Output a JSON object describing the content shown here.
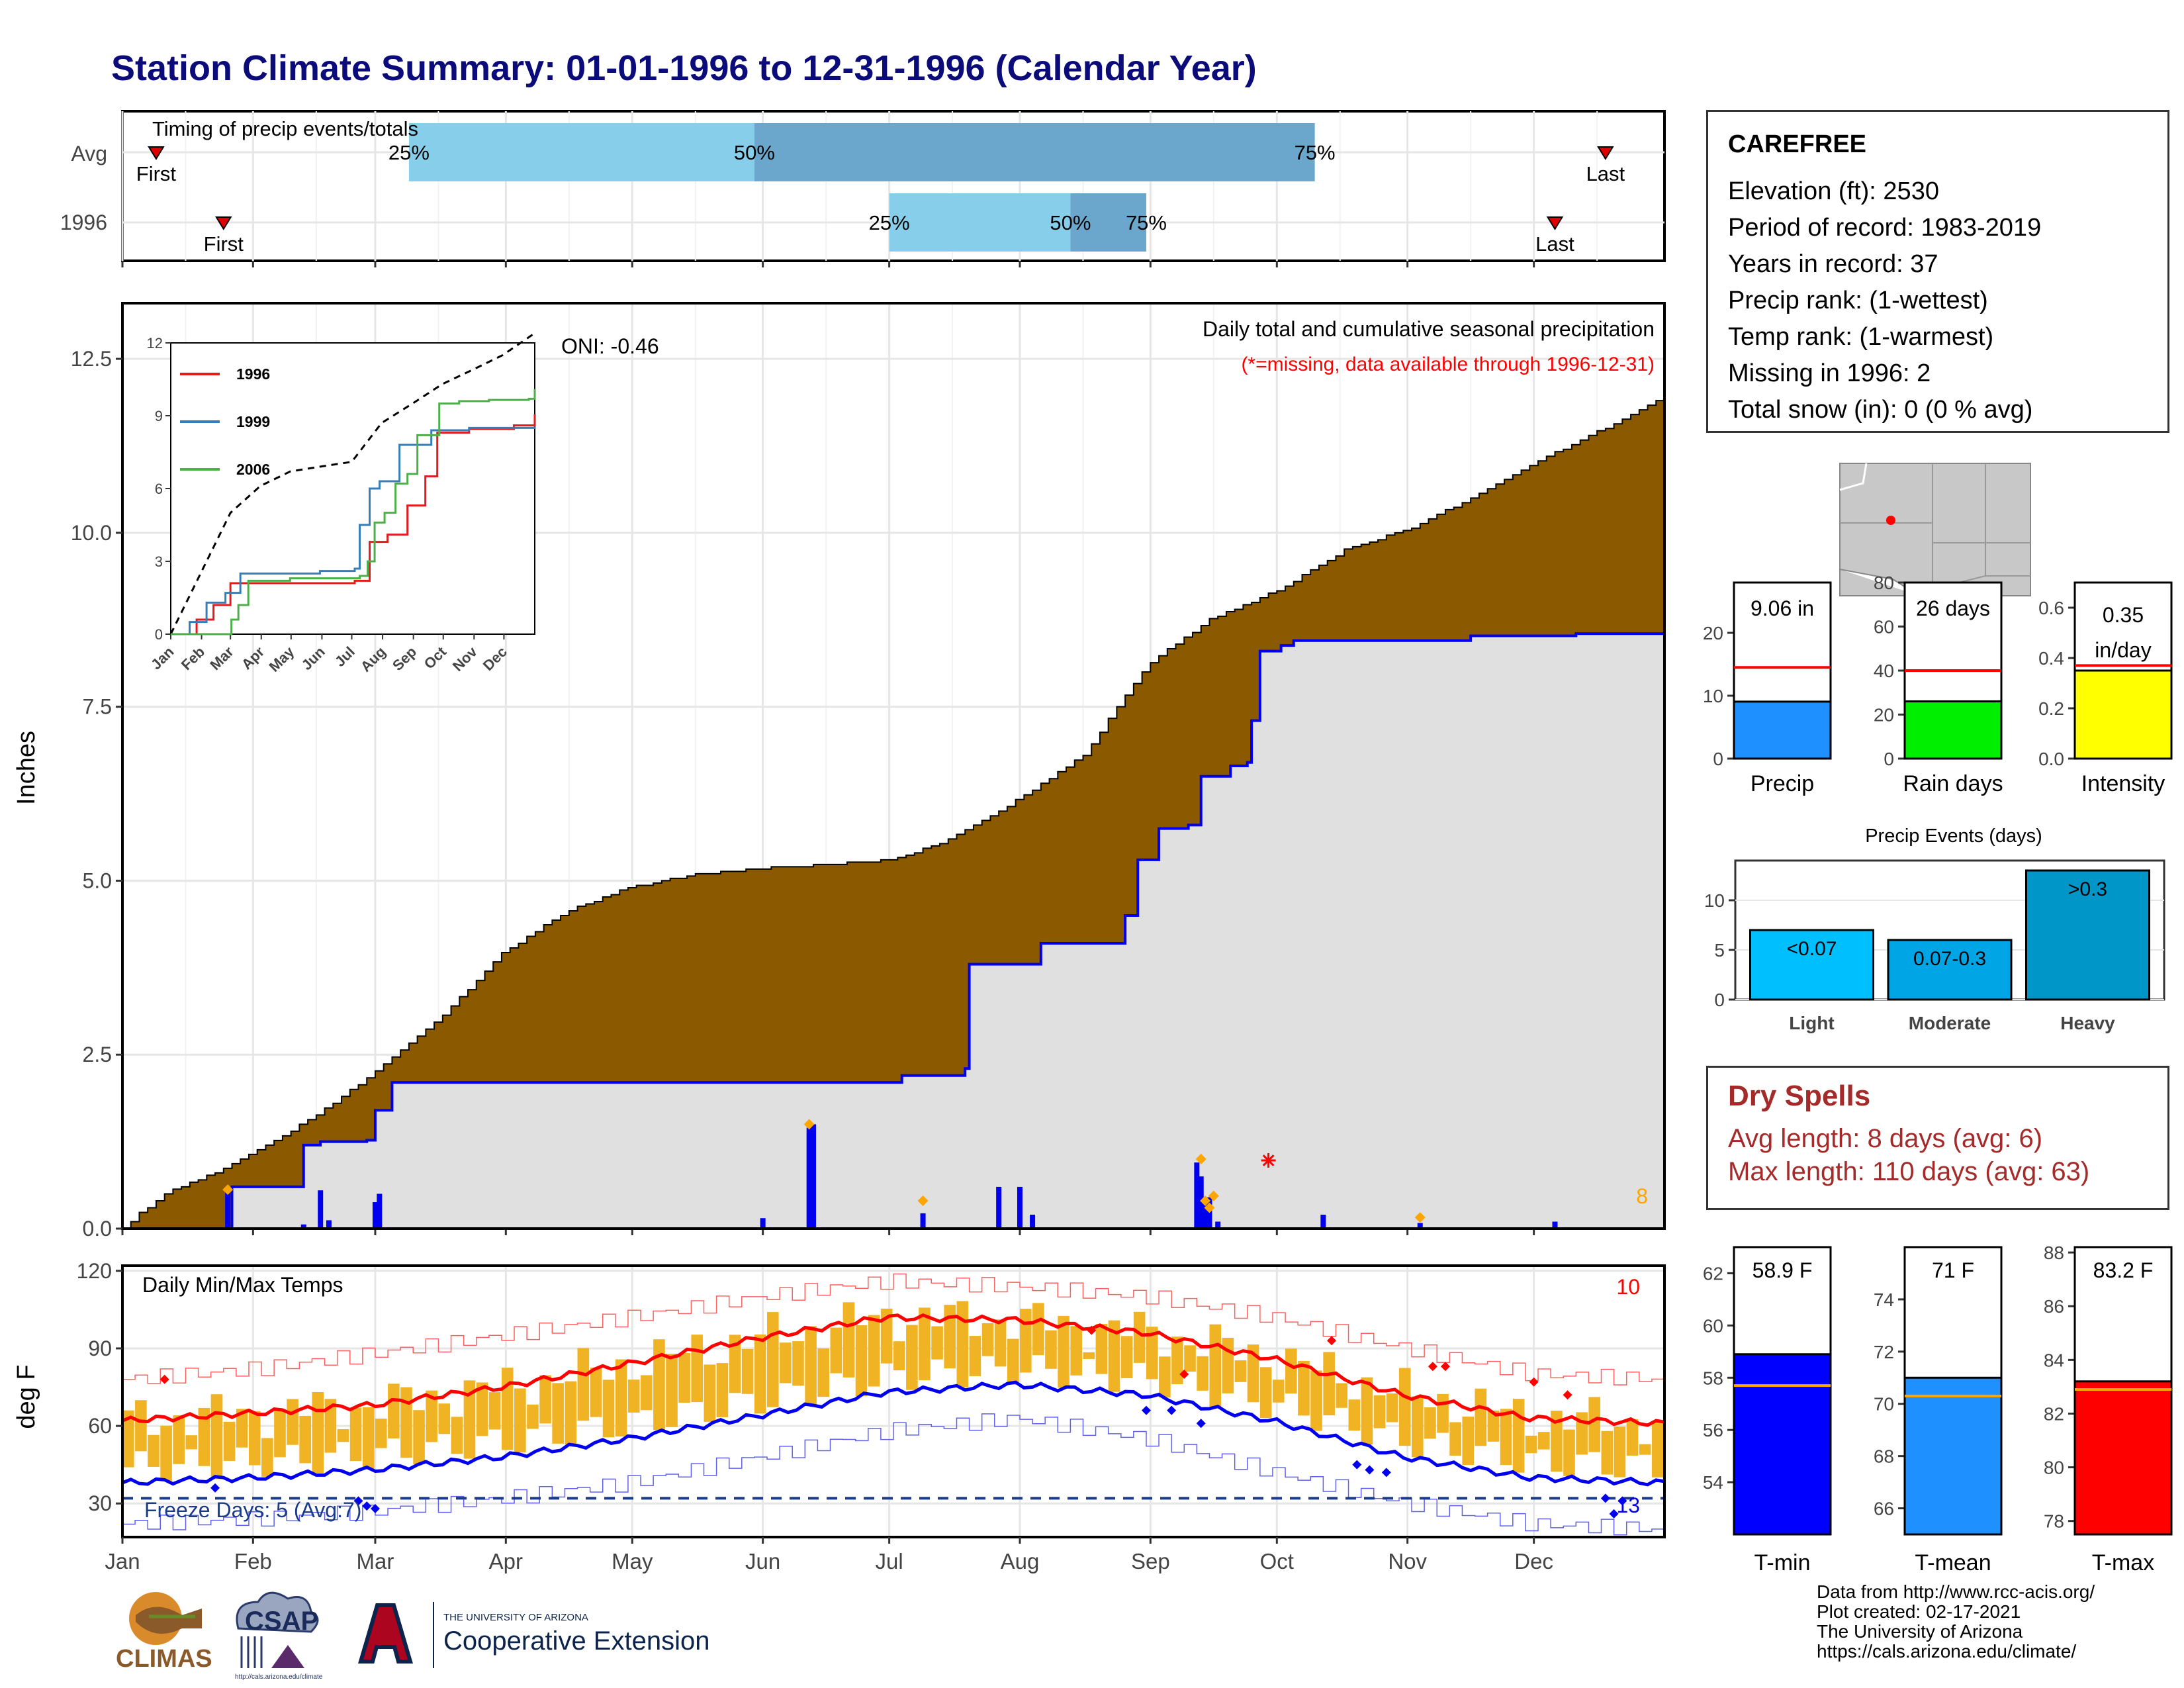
{
  "title": "Station Climate Summary: 01-01-1996 to 12-31-1996 (Calendar Year)",
  "timing_panel": {
    "label": "Timing of precip events/totals",
    "row_labels": [
      "Avg",
      "1996"
    ],
    "avg": {
      "first_day": 8,
      "p25_day": 68,
      "p50_day": 150,
      "p75_day": 283,
      "last_day": 352
    },
    "y1996": {
      "first_day": 24,
      "p25_day": 182,
      "p50_day": 225,
      "p75_day": 243,
      "last_day": 340
    },
    "first_label": "First",
    "last_label": "Last",
    "p25_label": "25%",
    "p50_label": "50%",
    "p75_label": "75%",
    "colors": {
      "q1": "#87ceeb",
      "q2": "#6ba6cc",
      "marker": "#e00000"
    }
  },
  "precip_panel": {
    "ylabel": "Inches",
    "oni_label": "ONI: -0.46",
    "caption": "Daily total and cumulative seasonal precipitation",
    "missing_note": "(*=missing, data available through 1996-12-31)",
    "count_label": "8",
    "ylim": [
      0,
      13.3
    ],
    "yticks": [
      "0.0",
      "2.5",
      "5.0",
      "7.5",
      "10.0",
      "12.5"
    ],
    "avg_cumulative": [
      [
        0,
        0
      ],
      [
        4,
        0.22
      ],
      [
        10,
        0.5
      ],
      [
        20,
        0.75
      ],
      [
        31,
        1.08
      ],
      [
        45,
        1.6
      ],
      [
        59,
        2.2
      ],
      [
        75,
        3.0
      ],
      [
        90,
        3.95
      ],
      [
        105,
        4.55
      ],
      [
        120,
        4.9
      ],
      [
        135,
        5.08
      ],
      [
        150,
        5.17
      ],
      [
        165,
        5.22
      ],
      [
        182,
        5.3
      ],
      [
        195,
        5.55
      ],
      [
        212,
        6.15
      ],
      [
        228,
        6.8
      ],
      [
        243,
        8.1
      ],
      [
        258,
        8.75
      ],
      [
        275,
        9.2
      ],
      [
        290,
        9.75
      ],
      [
        305,
        10.05
      ],
      [
        320,
        10.5
      ],
      [
        335,
        11.0
      ],
      [
        350,
        11.45
      ],
      [
        360,
        11.75
      ],
      [
        366,
        11.95
      ]
    ],
    "obs_cumulative": [
      [
        0,
        0
      ],
      [
        25,
        0
      ],
      [
        26,
        0.6
      ],
      [
        42,
        0.6
      ],
      [
        43,
        1.2
      ],
      [
        47,
        1.25
      ],
      [
        58,
        1.27
      ],
      [
        60,
        1.7
      ],
      [
        64,
        2.1
      ],
      [
        152,
        2.1
      ],
      [
        185,
        2.2
      ],
      [
        200,
        2.3
      ],
      [
        201,
        3.8
      ],
      [
        218,
        4.1
      ],
      [
        238,
        4.5
      ],
      [
        241,
        5.3
      ],
      [
        246,
        5.75
      ],
      [
        253,
        5.8
      ],
      [
        256,
        6.5
      ],
      [
        263,
        6.65
      ],
      [
        267,
        6.7
      ],
      [
        268,
        7.3
      ],
      [
        270,
        8.3
      ],
      [
        275,
        8.38
      ],
      [
        278,
        8.45
      ],
      [
        300,
        8.45
      ],
      [
        320,
        8.52
      ],
      [
        345,
        8.55
      ],
      [
        366,
        9.06
      ]
    ],
    "daily_bars": [
      [
        25,
        0.58
      ],
      [
        43,
        0.06
      ],
      [
        47,
        0.55
      ],
      [
        49,
        0.12
      ],
      [
        60,
        0.38
      ],
      [
        61,
        0.5
      ],
      [
        152,
        0.15
      ],
      [
        163,
        1.45
      ],
      [
        164,
        1.5
      ],
      [
        190,
        0.22
      ],
      [
        208,
        0.6
      ],
      [
        213,
        0.6
      ],
      [
        216,
        0.2
      ],
      [
        255,
        0.95
      ],
      [
        256,
        0.75
      ],
      [
        257,
        0.4
      ],
      [
        258,
        0.45
      ],
      [
        260,
        0.1
      ],
      [
        285,
        0.2
      ],
      [
        308,
        0.08
      ],
      [
        340,
        0.1
      ]
    ],
    "max_markers": [
      [
        25,
        0.56
      ],
      [
        163,
        1.5
      ],
      [
        190,
        0.4
      ],
      [
        256,
        1.0
      ],
      [
        257,
        0.4
      ],
      [
        258,
        0.3
      ],
      [
        259,
        0.47
      ],
      [
        308,
        0.16
      ]
    ],
    "missing_markers": [
      [
        272,
        0.98
      ]
    ],
    "colors": {
      "area": "#8b5a00",
      "obs_fill": "#e0e0e0",
      "obs_line": "#0000ee",
      "bars": "#0000ee",
      "max": "#ffa500",
      "missing": "#ff0000"
    }
  },
  "inset": {
    "ylim": [
      0,
      12
    ],
    "yticks": [
      "0",
      "3",
      "6",
      "9",
      "12"
    ],
    "months": [
      "Jan",
      "Feb",
      "Mar",
      "Apr",
      "May",
      "Jun",
      "Jul",
      "Aug",
      "Sep",
      "Oct",
      "Nov",
      "Dec"
    ],
    "avg": [
      [
        0,
        0
      ],
      [
        30,
        2.5
      ],
      [
        60,
        5
      ],
      [
        90,
        6.1
      ],
      [
        120,
        6.7
      ],
      [
        150,
        6.9
      ],
      [
        182,
        7.1
      ],
      [
        212,
        8.7
      ],
      [
        243,
        9.5
      ],
      [
        273,
        10.3
      ],
      [
        304,
        10.9
      ],
      [
        334,
        11.5
      ],
      [
        366,
        12.4
      ]
    ],
    "series": [
      {
        "name": "1996",
        "color": "#e41a1c",
        "points": [
          [
            0,
            0
          ],
          [
            25,
            0
          ],
          [
            26,
            0.6
          ],
          [
            42,
            0.6
          ],
          [
            43,
            1.2
          ],
          [
            60,
            2.1
          ],
          [
            152,
            2.1
          ],
          [
            185,
            2.2
          ],
          [
            200,
            3.8
          ],
          [
            218,
            4.1
          ],
          [
            238,
            5.3
          ],
          [
            256,
            6.5
          ],
          [
            268,
            8.3
          ],
          [
            300,
            8.45
          ],
          [
            345,
            8.6
          ],
          [
            366,
            9.06
          ]
        ]
      },
      {
        "name": "1999",
        "color": "#377eb8",
        "points": [
          [
            0,
            0
          ],
          [
            18,
            0
          ],
          [
            19,
            0.5
          ],
          [
            35,
            0.5
          ],
          [
            36,
            1.3
          ],
          [
            55,
            1.7
          ],
          [
            70,
            2.5
          ],
          [
            150,
            2.6
          ],
          [
            185,
            2.7
          ],
          [
            190,
            4.5
          ],
          [
            200,
            6.0
          ],
          [
            210,
            6.3
          ],
          [
            230,
            7.8
          ],
          [
            262,
            8.4
          ],
          [
            300,
            8.5
          ],
          [
            366,
            8.55
          ]
        ]
      },
      {
        "name": "2006",
        "color": "#4daf4a",
        "points": [
          [
            0,
            0
          ],
          [
            60,
            0
          ],
          [
            61,
            0.6
          ],
          [
            68,
            1.2
          ],
          [
            78,
            2.2
          ],
          [
            120,
            2.3
          ],
          [
            190,
            2.4
          ],
          [
            198,
            3.0
          ],
          [
            205,
            4.6
          ],
          [
            215,
            5.0
          ],
          [
            226,
            6.2
          ],
          [
            238,
            6.6
          ],
          [
            248,
            8.2
          ],
          [
            270,
            9.5
          ],
          [
            290,
            9.6
          ],
          [
            320,
            9.65
          ],
          [
            360,
            9.7
          ],
          [
            366,
            10.1
          ]
        ]
      }
    ]
  },
  "temp_panel": {
    "ylabel": "deg F",
    "label": "Daily Min/Max Temps",
    "freeze_label": "Freeze Days: 5 (Avg:7)",
    "count_high": "10",
    "count_low": "13",
    "ylim": [
      17,
      122
    ],
    "yticks": [
      "30",
      "60",
      "90",
      "120"
    ],
    "freeze_line": 32,
    "months": [
      "Jan",
      "Feb",
      "Mar",
      "Apr",
      "May",
      "Jun",
      "Jul",
      "Aug",
      "Sep",
      "Oct",
      "Nov",
      "Dec"
    ],
    "avg_max": [
      [
        0,
        62
      ],
      [
        31,
        65
      ],
      [
        59,
        68
      ],
      [
        90,
        75
      ],
      [
        120,
        84
      ],
      [
        151,
        94
      ],
      [
        181,
        102
      ],
      [
        212,
        101
      ],
      [
        243,
        96
      ],
      [
        273,
        86
      ],
      [
        304,
        72
      ],
      [
        334,
        63
      ],
      [
        366,
        61
      ]
    ],
    "avg_min": [
      [
        0,
        38
      ],
      [
        31,
        40
      ],
      [
        59,
        43
      ],
      [
        90,
        48
      ],
      [
        120,
        55
      ],
      [
        151,
        64
      ],
      [
        181,
        73
      ],
      [
        212,
        76
      ],
      [
        243,
        72
      ],
      [
        273,
        62
      ],
      [
        304,
        48
      ],
      [
        334,
        40
      ],
      [
        366,
        38
      ]
    ],
    "rec_max": [
      [
        0,
        78
      ],
      [
        31,
        82
      ],
      [
        59,
        88
      ],
      [
        90,
        95
      ],
      [
        120,
        102
      ],
      [
        151,
        110
      ],
      [
        181,
        116
      ],
      [
        212,
        114
      ],
      [
        243,
        110
      ],
      [
        273,
        102
      ],
      [
        304,
        90
      ],
      [
        334,
        80
      ],
      [
        366,
        78
      ]
    ],
    "rec_min": [
      [
        0,
        22
      ],
      [
        31,
        24
      ],
      [
        59,
        27
      ],
      [
        90,
        32
      ],
      [
        120,
        38
      ],
      [
        151,
        48
      ],
      [
        181,
        58
      ],
      [
        212,
        63
      ],
      [
        243,
        55
      ],
      [
        273,
        42
      ],
      [
        304,
        30
      ],
      [
        334,
        22
      ],
      [
        366,
        20
      ]
    ],
    "high_markers": [
      [
        10,
        78
      ],
      [
        230,
        97
      ],
      [
        252,
        80
      ],
      [
        287,
        93
      ],
      [
        311,
        83
      ],
      [
        314,
        83
      ],
      [
        335,
        77
      ],
      [
        343,
        72
      ]
    ],
    "low_markers": [
      [
        22,
        36
      ],
      [
        56,
        31
      ],
      [
        58,
        29
      ],
      [
        60,
        28
      ],
      [
        243,
        66
      ],
      [
        249,
        66
      ],
      [
        256,
        61
      ],
      [
        293,
        45
      ],
      [
        296,
        43
      ],
      [
        300,
        42
      ],
      [
        352,
        32
      ],
      [
        354,
        26
      ],
      [
        356,
        31
      ]
    ],
    "colors": {
      "range": "#f0b323",
      "avg_max": "#ff0000",
      "avg_min": "#0000ee",
      "rec_max": "#ff6060",
      "rec_min": "#6060ee",
      "freeze": "#1a3a8a"
    }
  },
  "side_bars": {
    "precip": {
      "value_label": "9.06 in",
      "value": 9.06,
      "avg": 14.5,
      "ymax": 28,
      "ticks": [
        "0",
        "10",
        "20"
      ],
      "label": "Precip",
      "color": "#1e90ff"
    },
    "rain_days": {
      "value_label": "26 days",
      "value": 26,
      "avg": 40,
      "ymax": 80,
      "ticks": [
        "0",
        "20",
        "40",
        "60",
        "80"
      ],
      "label": "Rain days",
      "color": "#00ee00"
    },
    "intensity": {
      "value_label": "0.35",
      "value_label2": "in/day",
      "value": 0.35,
      "avg": 0.37,
      "ymax": 0.7,
      "ticks": [
        "0.0",
        "0.2",
        "0.4",
        "0.6"
      ],
      "label": "Intensity",
      "color": "#ffff00"
    },
    "avg_line_color": "#ff0000"
  },
  "events_panel": {
    "title": "Precip Events (days)",
    "ymax": 14,
    "ticks": [
      "0",
      "5",
      "10"
    ],
    "bars": [
      {
        "label": "<0.07",
        "category": "Light",
        "value": 7,
        "color": "#00bfff"
      },
      {
        "label": "0.07-0.3",
        "category": "Moderate",
        "value": 6,
        "color": "#00a5e6"
      },
      {
        "label": ">0.3",
        "category": "Heavy",
        "value": 13,
        "color": "#0096c8"
      }
    ]
  },
  "temp_bars": {
    "tmin": {
      "value_label": "58.9 F",
      "value": 58.9,
      "avg": 57.7,
      "ylim": [
        52,
        63
      ],
      "ticks": [
        "54",
        "56",
        "58",
        "60",
        "62"
      ],
      "label": "T-min",
      "color": "#0000ff"
    },
    "tmean": {
      "value_label": "71 F",
      "value": 71,
      "avg": 70.3,
      "ylim": [
        65,
        76
      ],
      "ticks": [
        "66",
        "68",
        "70",
        "72",
        "74"
      ],
      "label": "T-mean",
      "color": "#1e90ff"
    },
    "tmax": {
      "value_label": "83.2 F",
      "value": 83.2,
      "avg": 82.9,
      "ylim": [
        77.5,
        88.2
      ],
      "ticks": [
        "78",
        "80",
        "82",
        "84",
        "86",
        "88"
      ],
      "label": "T-max",
      "color": "#ff0000"
    },
    "avg_line_color": "#ffa500"
  },
  "station": {
    "name": "CAREFREE",
    "elevation": "Elevation (ft): 2530",
    "period": "Period of record: 1983-2019",
    "years": "Years in record: 37",
    "precip_rank": "Precip rank:  (1-wettest)",
    "temp_rank": "Temp rank:  (1-warmest)",
    "missing": "Missing in 1996: 2",
    "snow": "Total snow (in): 0 (0 % avg)"
  },
  "dry_spells": {
    "title": "Dry Spells",
    "avg": "Avg length: 8 days (avg: 6)",
    "max": "Max length: 110 days (avg: 63)"
  },
  "credits": {
    "line1": "Data from http://www.rcc-acis.org/",
    "line2": "Plot created: 02-17-2021",
    "line3": "The University of Arizona",
    "line4": "https://cals.arizona.edu/climate/"
  },
  "logos": {
    "climas": "CLIMAS",
    "csap": "CSAP",
    "csap_url": "http://cals.arizona.edu/climate",
    "ua_small": "THE UNIVERSITY OF ARIZONA",
    "ua_big": "Cooperative Extension"
  }
}
